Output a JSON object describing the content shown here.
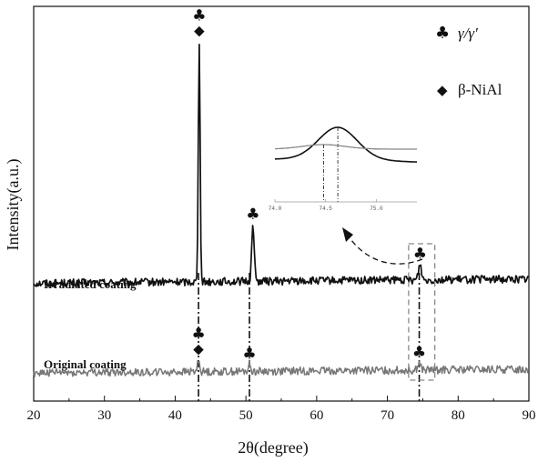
{
  "chart_data": {
    "type": "line",
    "xlabel": "2θ(degree)",
    "ylabel": "Intensity(a.u.)",
    "xlim": [
      20,
      90
    ],
    "xticks": [
      "20",
      "30",
      "40",
      "50",
      "60",
      "70",
      "80",
      "90"
    ],
    "grid": false,
    "legend_position": "top-right",
    "legend": [
      {
        "symbol": "♣",
        "label": "γ/γ′"
      },
      {
        "symbol": "◆",
        "label": "β-NiAl"
      }
    ],
    "series": [
      {
        "name": "Irradiated coating",
        "color": "#111111",
        "baseline": 0.2,
        "drift": 0.06,
        "peaks": [
          {
            "x": 43.4,
            "height": 3.4,
            "width": 0.18
          },
          {
            "x": 51.0,
            "height": 0.8,
            "width": 0.25
          },
          {
            "x": 74.6,
            "height": 0.22,
            "width": 0.3
          }
        ]
      },
      {
        "name": "Original coating",
        "color": "#777777",
        "baseline": 0.0,
        "drift": 0.05,
        "peaks": [
          {
            "x": 43.3,
            "height": 0.18,
            "width": 0.2
          },
          {
            "x": 50.5,
            "height": 0.1,
            "width": 0.22
          },
          {
            "x": 74.5,
            "height": 0.1,
            "width": 0.3
          }
        ]
      }
    ],
    "peak_markers": [
      {
        "series": "Irradiated coating",
        "x": 43.4,
        "symbols": "♣◆"
      },
      {
        "series": "Irradiated coating",
        "x": 51.0,
        "symbols": "♣"
      },
      {
        "series": "Irradiated coating",
        "x": 74.6,
        "symbols": "♣"
      },
      {
        "series": "Original coating",
        "x": 43.3,
        "symbols": "♣◆"
      },
      {
        "series": "Original coating",
        "x": 50.5,
        "symbols": "♣"
      },
      {
        "series": "Original coating",
        "x": 74.5,
        "symbols": "♣"
      }
    ],
    "inset": {
      "x_range": [
        74.0,
        75.4
      ],
      "xticks": [
        "74.0",
        "74.5",
        "75.0"
      ],
      "zoom_box_x": [
        73.0,
        76.7
      ],
      "peak_positions": {
        "Irradiated coating": 74.62,
        "Original coating": 74.48
      }
    }
  }
}
